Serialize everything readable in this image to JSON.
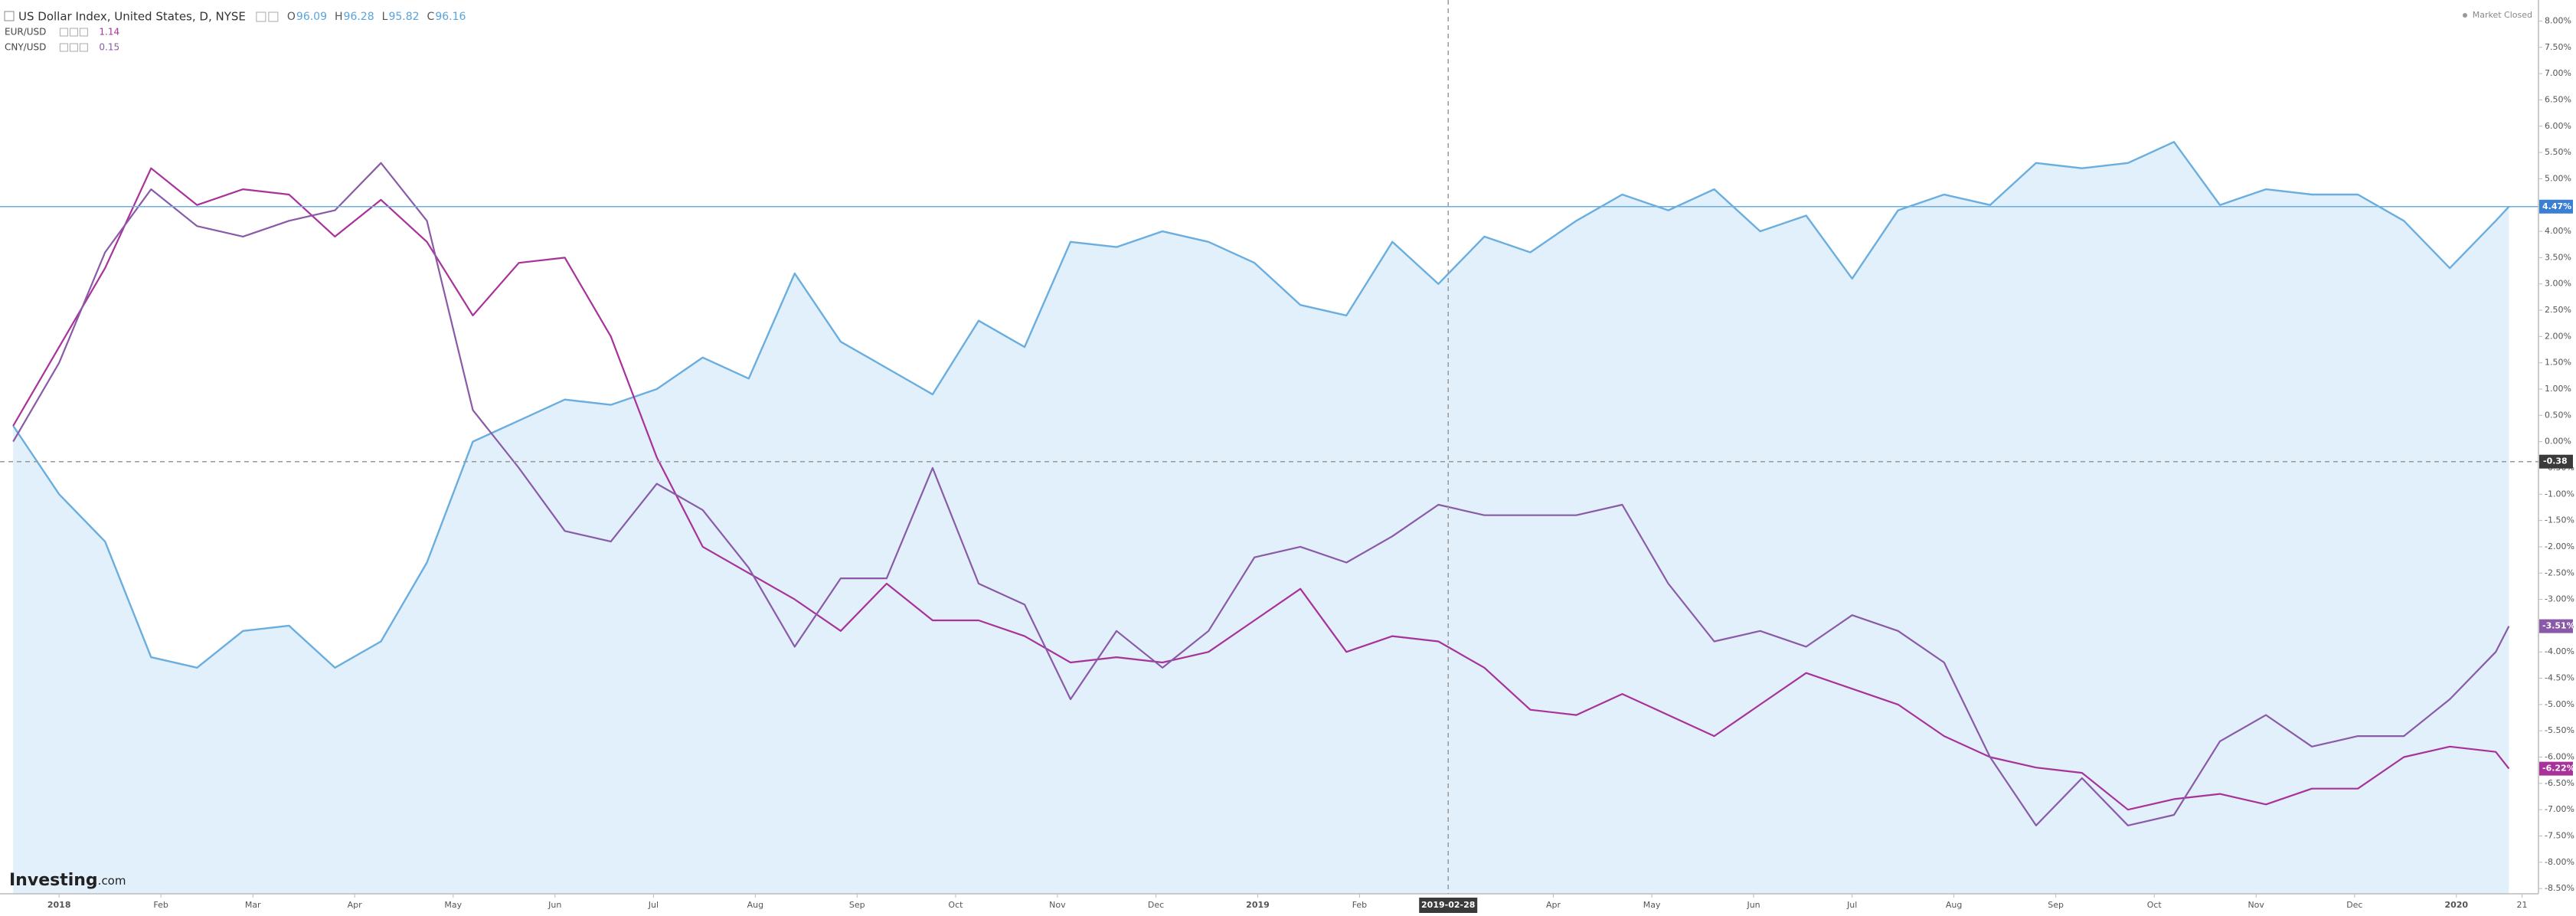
{
  "chart_data": {
    "type": "line",
    "x": [
      "2017-12-18",
      "2018-01-01",
      "2018-01-15",
      "2018-01-29",
      "2018-02-12",
      "2018-02-26",
      "2018-03-12",
      "2018-03-26",
      "2018-04-09",
      "2018-04-23",
      "2018-05-07",
      "2018-05-21",
      "2018-06-04",
      "2018-06-18",
      "2018-07-02",
      "2018-07-16",
      "2018-07-30",
      "2018-08-13",
      "2018-08-27",
      "2018-09-10",
      "2018-09-24",
      "2018-10-08",
      "2018-10-22",
      "2018-11-05",
      "2018-11-19",
      "2018-12-03",
      "2018-12-17",
      "2018-12-31",
      "2019-01-14",
      "2019-01-28",
      "2019-02-11",
      "2019-02-25",
      "2019-03-11",
      "2019-03-25",
      "2019-04-08",
      "2019-04-22",
      "2019-05-06",
      "2019-05-20",
      "2019-06-03",
      "2019-06-17",
      "2019-07-01",
      "2019-07-15",
      "2019-07-29",
      "2019-08-12",
      "2019-08-26",
      "2019-09-09",
      "2019-09-23",
      "2019-10-07",
      "2019-10-21",
      "2019-11-04",
      "2019-11-18",
      "2019-12-02",
      "2019-12-16",
      "2019-12-30",
      "2020-01-13",
      "2020-01-17"
    ],
    "series": [
      {
        "name": "US Dollar Index, United States, D, NYSE",
        "color": "#6aaee0",
        "fill": "#e1f0fa",
        "area": true,
        "end_label": "4.47%",
        "values": [
          0.3,
          -1.0,
          -1.9,
          -4.1,
          -4.3,
          -3.6,
          -3.5,
          -4.3,
          -3.8,
          -2.3,
          0.0,
          0.4,
          0.8,
          0.7,
          1.0,
          1.6,
          1.2,
          3.2,
          1.9,
          1.4,
          0.9,
          2.3,
          1.8,
          3.8,
          3.7,
          4.0,
          3.8,
          3.4,
          2.6,
          2.4,
          3.8,
          3.0,
          3.9,
          3.6,
          4.2,
          4.7,
          4.4,
          4.8,
          4.0,
          4.3,
          3.1,
          4.4,
          4.7,
          4.5,
          5.3,
          5.2,
          5.3,
          5.7,
          4.5,
          4.8,
          4.7,
          4.7,
          4.2,
          3.3,
          4.2,
          4.47
        ]
      },
      {
        "name": "EUR/USD",
        "color": "#a8329a",
        "last_price": 1.14,
        "end_label": "-6.22%",
        "values": [
          0.3,
          1.8,
          3.3,
          5.2,
          4.5,
          4.8,
          4.7,
          3.9,
          4.6,
          3.8,
          2.4,
          3.4,
          3.5,
          2.0,
          -0.3,
          -2.0,
          -2.5,
          -3.0,
          -3.6,
          -2.7,
          -3.4,
          -3.4,
          -3.7,
          -4.2,
          -4.1,
          -4.2,
          -4.0,
          -3.4,
          -2.8,
          -4.0,
          -3.7,
          -3.8,
          -4.3,
          -5.1,
          -5.2,
          -4.8,
          -5.2,
          -5.6,
          -5.0,
          -4.4,
          -4.7,
          -5.0,
          -5.6,
          -6.0,
          -6.2,
          -6.3,
          -7.0,
          -6.8,
          -6.7,
          -6.9,
          -6.6,
          -6.6,
          -6.0,
          -5.8,
          -5.9,
          -6.22
        ]
      },
      {
        "name": "CNY/USD",
        "color": "#8a5aa8",
        "last_price": 0.15,
        "end_label": "-3.51%",
        "values": [
          0.0,
          1.5,
          3.6,
          4.8,
          4.1,
          3.9,
          4.2,
          4.4,
          5.3,
          4.2,
          0.6,
          -0.5,
          -1.7,
          -1.9,
          -0.8,
          -1.3,
          -2.4,
          -3.9,
          -2.6,
          -2.6,
          -0.5,
          -2.7,
          -3.1,
          -4.9,
          -3.6,
          -4.3,
          -3.6,
          -2.2,
          -2.0,
          -2.3,
          -1.8,
          -1.2,
          -1.4,
          -1.4,
          -1.4,
          -1.2,
          -2.7,
          -3.8,
          -3.6,
          -3.9,
          -3.3,
          -3.6,
          -4.2,
          -6.0,
          -7.3,
          -6.4,
          -7.3,
          -7.1,
          -5.7,
          -5.2,
          -5.8,
          -5.6,
          -5.6,
          -4.9,
          -4.0,
          -3.51
        ]
      }
    ],
    "ohlc": [
      {
        "label": "O",
        "value": 96.09
      },
      {
        "label": "H",
        "value": 96.28
      },
      {
        "label": "L",
        "value": 95.82
      },
      {
        "label": "C",
        "value": 96.16
      }
    ],
    "status": "Market Closed",
    "watermark": [
      "Investing",
      ".com"
    ],
    "crosshair": {
      "x": "2019-02-28",
      "y": -0.38
    },
    "xlim": [
      "2017-12-14",
      "2020-01-26"
    ],
    "xticks": [
      {
        "value": "2018-01-01",
        "label": "2018"
      },
      {
        "value": "2018-02-01",
        "label": "Feb"
      },
      {
        "value": "2018-03-01",
        "label": "Mar"
      },
      {
        "value": "2018-04-01",
        "label": "Apr"
      },
      {
        "value": "2018-05-01",
        "label": "May"
      },
      {
        "value": "2018-06-01",
        "label": "Jun"
      },
      {
        "value": "2018-07-01",
        "label": "Jul"
      },
      {
        "value": "2018-08-01",
        "label": "Aug"
      },
      {
        "value": "2018-09-01",
        "label": "Sep"
      },
      {
        "value": "2018-10-01",
        "label": "Oct"
      },
      {
        "value": "2018-11-01",
        "label": "Nov"
      },
      {
        "value": "2018-12-01",
        "label": "Dec"
      },
      {
        "value": "2019-01-01",
        "label": "2019"
      },
      {
        "value": "2019-02-01",
        "label": "Feb"
      },
      {
        "value": "2019-04-01",
        "label": "Apr"
      },
      {
        "value": "2019-05-01",
        "label": "May"
      },
      {
        "value": "2019-06-01",
        "label": "Jun"
      },
      {
        "value": "2019-07-01",
        "label": "Jul"
      },
      {
        "value": "2019-08-01",
        "label": "Aug"
      },
      {
        "value": "2019-09-01",
        "label": "Sep"
      },
      {
        "value": "2019-10-01",
        "label": "Oct"
      },
      {
        "value": "2019-11-01",
        "label": "Nov"
      },
      {
        "value": "2019-12-01",
        "label": "Dec"
      },
      {
        "value": "2020-01-01",
        "label": "2020"
      },
      {
        "value": "2020-01-21",
        "label": "21"
      }
    ],
    "ylim": [
      -8.6,
      8.4
    ],
    "yticks": [
      {
        "value": 8,
        "label": "8.00%"
      },
      {
        "value": 7.5,
        "label": "7.50%"
      },
      {
        "value": 7,
        "label": "7.00%"
      },
      {
        "value": 6.5,
        "label": "6.50%"
      },
      {
        "value": 6,
        "label": "6.00%"
      },
      {
        "value": 5.5,
        "label": "5.50%"
      },
      {
        "value": 5,
        "label": "5.00%"
      },
      {
        "value": 4.5,
        "label": "4.50%"
      },
      {
        "value": 4,
        "label": "4.00%"
      },
      {
        "value": 3.5,
        "label": "3.50%"
      },
      {
        "value": 3,
        "label": "3.00%"
      },
      {
        "value": 2.5,
        "label": "2.50%"
      },
      {
        "value": 2,
        "label": "2.00%"
      },
      {
        "value": 1.5,
        "label": "1.50%"
      },
      {
        "value": 1,
        "label": "1.00%"
      },
      {
        "value": 0.5,
        "label": "0.50%"
      },
      {
        "value": 0,
        "label": "0.00%"
      },
      {
        "value": -0.5,
        "label": "-0.50%"
      },
      {
        "value": -1,
        "label": "-1.00%"
      },
      {
        "value": -1.5,
        "label": "-1.50%"
      },
      {
        "value": -2,
        "label": "-2.00%"
      },
      {
        "value": -2.5,
        "label": "-2.50%"
      },
      {
        "value": -3,
        "label": "-3.00%"
      },
      {
        "value": -3.5,
        "label": "-3.50%"
      },
      {
        "value": -4,
        "label": "-4.00%"
      },
      {
        "value": -4.5,
        "label": "-4.50%"
      },
      {
        "value": -5,
        "label": "-5.00%"
      },
      {
        "value": -5.5,
        "label": "-5.50%"
      },
      {
        "value": -6,
        "label": "-6.00%"
      },
      {
        "value": -6.5,
        "label": "-6.50%"
      },
      {
        "value": -7,
        "label": "-7.00%"
      },
      {
        "value": -7.5,
        "label": "-7.50%"
      },
      {
        "value": -8,
        "label": "-8.00%"
      },
      {
        "value": -8.5,
        "label": "-8.50%"
      }
    ],
    "grid": false
  }
}
